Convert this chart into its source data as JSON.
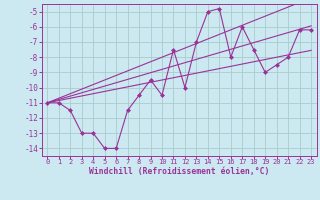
{
  "x": [
    0,
    1,
    2,
    3,
    4,
    5,
    6,
    7,
    8,
    9,
    10,
    11,
    12,
    13,
    14,
    15,
    16,
    17,
    18,
    19,
    20,
    21,
    22,
    23
  ],
  "y_main": [
    -11,
    -11,
    -11.5,
    -13,
    -13,
    -14,
    -14,
    -11.5,
    -10.5,
    -9.5,
    -10.5,
    -7.5,
    -10,
    -7,
    -5,
    -4.8,
    -8,
    -6,
    -7.5,
    -9,
    -8.5,
    -8,
    -6.2,
    -6.2
  ],
  "trend1": [
    -11.0,
    -10.7,
    -10.4,
    -10.1,
    -9.8,
    -9.5,
    -9.2,
    -8.9,
    -8.6,
    -8.3,
    -8.0,
    -7.7,
    -7.4,
    -7.1,
    -6.8,
    -6.5,
    -6.2,
    -5.9,
    -5.6,
    -5.3,
    -5.0,
    -4.7,
    -4.4,
    -4.1
  ],
  "trend2": [
    -11.0,
    -10.85,
    -10.7,
    -10.55,
    -10.4,
    -10.25,
    -10.1,
    -9.95,
    -9.8,
    -9.65,
    -9.5,
    -9.35,
    -9.2,
    -9.05,
    -8.9,
    -8.75,
    -8.6,
    -8.45,
    -8.3,
    -8.15,
    -8.0,
    -7.85,
    -7.7,
    -7.55
  ],
  "trend3": [
    -11.0,
    -10.78,
    -10.56,
    -10.34,
    -10.12,
    -9.9,
    -9.68,
    -9.46,
    -9.24,
    -9.02,
    -8.8,
    -8.58,
    -8.36,
    -8.14,
    -7.92,
    -7.7,
    -7.48,
    -7.26,
    -7.04,
    -6.82,
    -6.6,
    -6.38,
    -6.16,
    -5.94
  ],
  "line_color": "#993399",
  "bg_color": "#cce8f0",
  "grid_color": "#aacccc",
  "xlabel": "Windchill (Refroidissement éolien,°C)",
  "ylim": [
    -14.5,
    -4.5
  ],
  "xlim": [
    -0.5,
    23.5
  ],
  "yticks": [
    -5,
    -6,
    -7,
    -8,
    -9,
    -10,
    -11,
    -12,
    -13,
    -14
  ],
  "xticks": [
    0,
    1,
    2,
    3,
    4,
    5,
    6,
    7,
    8,
    9,
    10,
    11,
    12,
    13,
    14,
    15,
    16,
    17,
    18,
    19,
    20,
    21,
    22,
    23
  ]
}
